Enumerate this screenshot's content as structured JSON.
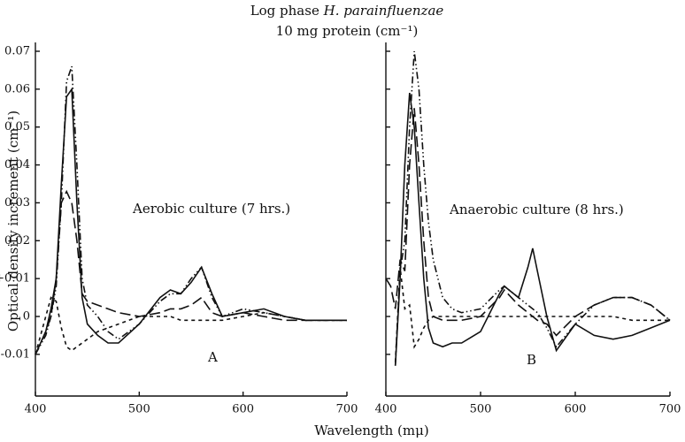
{
  "figure": {
    "title_prefix": "Log phase",
    "title_species": "H. parainfluenzae",
    "subtitle": "10 mg protein (cm⁻¹)",
    "y_label": "Optical density increment (cm⁻¹)",
    "x_label": "Wavelength (mμ)"
  },
  "chart_data": [
    {
      "type": "line",
      "annotation": "Aerobic culture (7 hrs.)",
      "panel_label": "A",
      "xlim": [
        400,
        700
      ],
      "xticks": [
        400,
        500,
        600,
        700
      ],
      "ylim": [
        -0.021,
        0.07
      ],
      "yticks": [
        -0.01,
        0,
        {
          "value": 0.01,
          "label": "+0.01"
        },
        0.02,
        0.03,
        0.04,
        0.05,
        0.06,
        0.07
      ],
      "show_ytick_labels": true,
      "x": [
        400,
        410,
        415,
        420,
        425,
        430,
        435,
        440,
        445,
        450,
        460,
        470,
        480,
        500,
        520,
        530,
        540,
        550,
        560,
        570,
        580,
        600,
        620,
        640,
        660,
        680,
        700
      ],
      "series": [
        {
          "style": "solid",
          "color": "#111111",
          "values": [
            -0.01,
            -0.004,
            0.002,
            0.01,
            0.035,
            0.058,
            0.06,
            0.03,
            0.005,
            -0.002,
            -0.005,
            -0.007,
            -0.007,
            -0.002,
            0.005,
            0.007,
            0.006,
            0.009,
            0.013,
            0.006,
            0.0,
            0.001,
            0.002,
            0.0,
            -0.001,
            -0.001,
            -0.001
          ]
        },
        {
          "style": "dashdotdot",
          "color": "#111111",
          "values": [
            -0.01,
            -0.005,
            0.0,
            0.008,
            0.03,
            0.062,
            0.066,
            0.04,
            0.01,
            0.003,
            0.0,
            -0.004,
            -0.006,
            -0.002,
            0.004,
            0.006,
            0.006,
            0.01,
            0.013,
            0.005,
            0.0,
            0.002,
            0.001,
            0.0,
            -0.001,
            -0.001,
            -0.001
          ]
        },
        {
          "style": "long",
          "color": "#111111",
          "values": [
            -0.01,
            -0.004,
            0.0,
            0.01,
            0.03,
            0.033,
            0.03,
            0.02,
            0.006,
            0.004,
            0.003,
            0.002,
            0.001,
            0.0,
            0.001,
            0.002,
            0.002,
            0.003,
            0.005,
            0.001,
            0.0,
            0.001,
            0.0,
            -0.001,
            -0.001,
            -0.001,
            -0.001
          ]
        },
        {
          "style": "short",
          "color": "#111111",
          "values": [
            -0.01,
            0.0,
            0.005,
            0.004,
            -0.003,
            -0.008,
            -0.009,
            -0.008,
            -0.007,
            -0.006,
            -0.004,
            -0.003,
            -0.002,
            0.0,
            0.0,
            0.0,
            -0.001,
            -0.001,
            -0.001,
            -0.001,
            -0.001,
            0.0,
            0.001,
            0.0,
            -0.001,
            -0.001,
            -0.001
          ]
        }
      ]
    },
    {
      "type": "line",
      "annotation": "Anaerobic culture (8 hrs.)",
      "panel_label": "B",
      "xlim": [
        400,
        700
      ],
      "xticks": [
        400,
        500,
        600,
        700
      ],
      "ylim": [
        -0.021,
        0.07
      ],
      "yticks": [
        -0.01,
        0,
        0.01,
        0.02,
        0.03,
        0.04,
        0.05,
        0.06,
        0.07
      ],
      "show_ytick_labels": false,
      "x": [
        400,
        405,
        410,
        415,
        420,
        425,
        430,
        435,
        440,
        445,
        450,
        460,
        470,
        480,
        500,
        520,
        525,
        540,
        550,
        555,
        560,
        570,
        580,
        600,
        620,
        640,
        660,
        680,
        700
      ],
      "series": [
        {
          "style": "solid",
          "color": "#111111",
          "values": [
            null,
            null,
            -0.013,
            0.01,
            0.04,
            0.059,
            0.05,
            0.03,
            0.01,
            -0.003,
            -0.007,
            -0.008,
            -0.007,
            -0.007,
            -0.004,
            0.006,
            0.008,
            0.005,
            0.013,
            0.018,
            0.012,
            0.0,
            -0.009,
            -0.002,
            -0.005,
            -0.006,
            -0.005,
            -0.003,
            -0.001
          ]
        },
        {
          "style": "dashdotdot",
          "color": "#111111",
          "values": [
            null,
            null,
            -0.013,
            0.012,
            0.02,
            0.05,
            0.07,
            0.06,
            0.04,
            0.025,
            0.015,
            0.005,
            0.002,
            0.001,
            0.002,
            0.007,
            0.008,
            0.005,
            0.003,
            0.002,
            0.001,
            -0.003,
            -0.008,
            -0.002,
            0.003,
            0.005,
            0.005,
            0.003,
            -0.001
          ]
        },
        {
          "style": "long",
          "color": "#111111",
          "values": [
            0.01,
            0.008,
            0.002,
            0.015,
            0.012,
            0.04,
            0.055,
            0.04,
            0.02,
            0.005,
            0.0,
            -0.001,
            -0.001,
            -0.001,
            0.0,
            0.005,
            0.007,
            0.003,
            0.001,
            0.0,
            -0.001,
            -0.002,
            -0.005,
            0.0,
            0.003,
            0.005,
            0.005,
            0.003,
            -0.001
          ]
        },
        {
          "style": "short",
          "color": "#111111",
          "values": [
            null,
            null,
            -0.012,
            0.013,
            0.002,
            0.003,
            -0.008,
            -0.006,
            -0.003,
            -0.001,
            0.0,
            0.0,
            0.0,
            0.0,
            0.0,
            0.0,
            0.0,
            0.0,
            0.0,
            0.0,
            0.0,
            0.0,
            0.0,
            0.0,
            0.0,
            0.0,
            -0.001,
            -0.001,
            -0.001
          ]
        }
      ]
    }
  ]
}
